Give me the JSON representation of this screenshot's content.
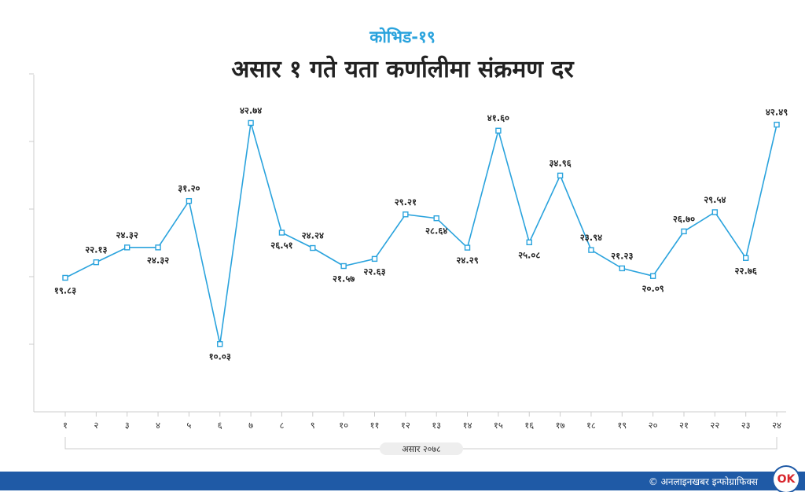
{
  "header": {
    "kicker": "कोभिड-१९",
    "title": "असार १ गते यता कर्णालीमा संक्रमण दर"
  },
  "footer": {
    "credit": "© अनलाइनखबर इन्फोग्राफिक्स",
    "logo_text": "OK"
  },
  "colors": {
    "line": "#2aa3dd",
    "footer": "#1f5aa6",
    "text": "#222222"
  },
  "chart_data": {
    "type": "line",
    "title": "असार १ गते यता कर्णालीमा संक्रमण दर",
    "xlabel": "असार २०७८",
    "ylabel": "",
    "grid": false,
    "ylim": [
      0,
      50
    ],
    "x": [
      "१",
      "२",
      "३",
      "४",
      "५",
      "६",
      "७",
      "८",
      "९",
      "१०",
      "११",
      "१२",
      "१३",
      "१४",
      "१५",
      "१६",
      "१७",
      "१८",
      "१९",
      "२०",
      "२१",
      "२२",
      "२३",
      "२४"
    ],
    "values": [
      19.83,
      22.13,
      24.32,
      24.32,
      31.2,
      10.03,
      42.74,
      26.51,
      24.24,
      21.57,
      22.63,
      29.21,
      28.64,
      24.29,
      41.6,
      25.08,
      34.96,
      23.94,
      21.23,
      20.09,
      26.7,
      29.54,
      22.76,
      42.49
    ],
    "labels": [
      "१९.८३",
      "२२.१३",
      "२४.३२",
      "२४.३२",
      "३१.२०",
      "१०.०३",
      "४२.७४",
      "२६.५१",
      "२४.२४",
      "२१.५७",
      "२२.६३",
      "२९.२१",
      "२८.६४",
      "२४.२९",
      "४१.६०",
      "२५.०८",
      "३४.९६",
      "२३.९४",
      "२१.२३",
      "२०.०९",
      "२६.७०",
      "२९.५४",
      "२२.७६",
      "४२.४९"
    ],
    "label_above": [
      false,
      true,
      true,
      false,
      true,
      false,
      true,
      false,
      true,
      false,
      false,
      true,
      false,
      false,
      true,
      false,
      true,
      true,
      true,
      false,
      true,
      true,
      false,
      true
    ]
  }
}
